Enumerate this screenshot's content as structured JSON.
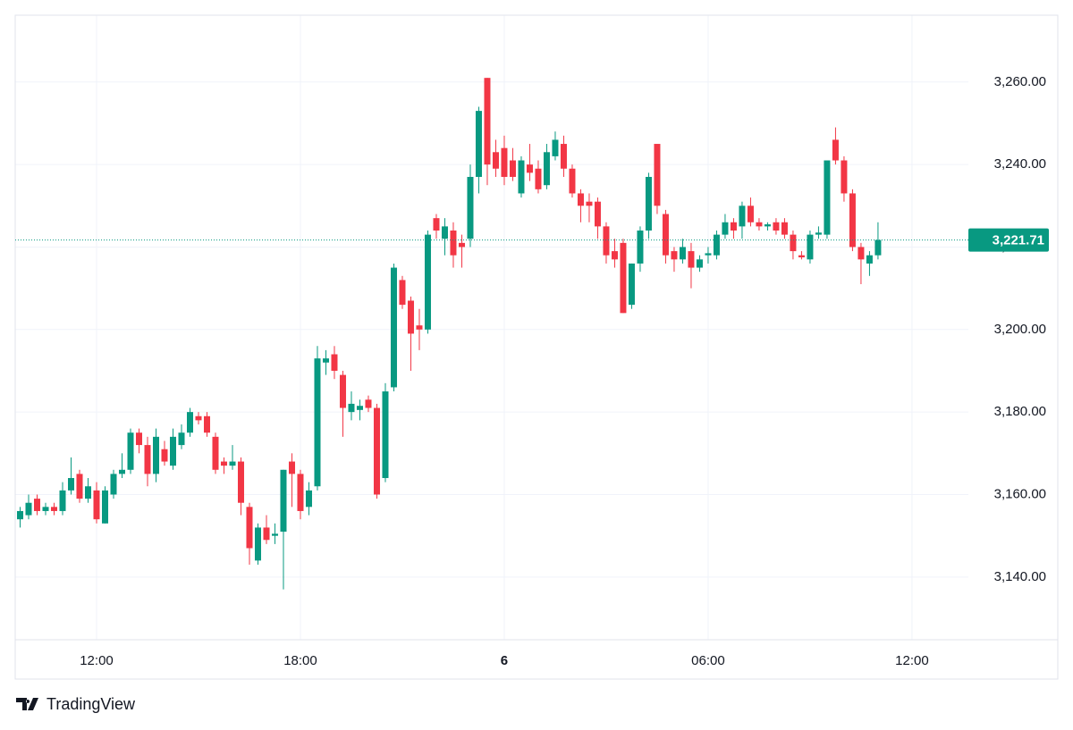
{
  "chart_data": {
    "type": "candlestick",
    "brand": "TradingView",
    "up_color": "#089981",
    "down_color": "#f23645",
    "x": [
      9.75,
      10,
      10.25,
      10.5,
      10.75,
      11,
      11.25,
      11.5,
      11.75,
      12,
      12.25,
      12.5,
      12.75,
      13,
      13.25,
      13.5,
      13.75,
      14,
      14.25,
      14.5,
      14.75,
      15,
      15.25,
      15.5,
      15.75,
      16,
      16.25,
      16.5,
      16.75,
      17,
      17.25,
      17.5,
      17.75,
      18,
      18.25,
      18.5,
      18.75,
      19,
      19.25,
      19.5,
      19.75,
      20,
      20.25,
      20.5,
      20.75,
      21,
      21.25,
      21.5,
      21.75,
      22,
      22.25,
      22.5,
      22.75,
      23,
      23.25,
      23.5,
      23.75,
      24,
      24.25,
      24.5,
      24.75,
      25,
      25.25,
      25.5,
      25.75,
      26,
      26.25,
      26.5,
      26.75,
      27,
      27.25,
      27.5,
      27.75,
      28,
      28.25,
      28.5,
      28.75,
      29,
      29.25,
      29.5,
      29.75,
      30,
      30.25,
      30.5,
      30.75,
      31,
      31.25,
      31.5,
      31.75,
      32,
      32.25,
      32.5,
      32.75,
      33,
      33.25,
      33.5,
      33.75,
      34,
      34.25,
      34.5,
      34.75,
      35
    ],
    "open": [
      3154,
      3155,
      3159,
      3156,
      3157,
      3156,
      3161,
      3165,
      3159,
      3161,
      3153,
      3160,
      3165,
      3166,
      3175,
      3172,
      3165,
      3171,
      3167,
      3172,
      3175,
      3179,
      3179,
      3174,
      3168,
      3167,
      3168,
      3157,
      3144,
      3152,
      3150,
      3151,
      3168,
      3165,
      3157,
      3162,
      3192,
      3194,
      3189,
      3180,
      3180.5,
      3183,
      3181,
      3164,
      3186,
      3212,
      3207,
      3201,
      3200,
      3227,
      3222,
      3224,
      3221,
      3222,
      3237,
      3261,
      3243,
      3244,
      3241,
      3233,
      3240,
      3239,
      3235,
      3242,
      3245,
      3239,
      3233,
      3231,
      3231,
      3225,
      3219,
      3221,
      3206,
      3216,
      3224,
      3245,
      3228,
      3219,
      3217,
      3219,
      3215,
      3218,
      3218,
      3223,
      3226,
      3225,
      3230,
      3226,
      3225,
      3226,
      3226,
      3223,
      3218,
      3217,
      3223,
      3223,
      3246,
      3241,
      3233,
      3220,
      3216,
      3218
    ],
    "high": [
      3157,
      3160,
      3160,
      3158,
      3158,
      3163,
      3169,
      3166,
      3164,
      3163,
      3162,
      3166,
      3170,
      3176,
      3176,
      3174,
      3176,
      3173,
      3176,
      3177,
      3181,
      3180,
      3180,
      3175,
      3169,
      3172,
      3169,
      3158,
      3153,
      3155,
      3153,
      3166,
      3170,
      3166,
      3163,
      3196,
      3195,
      3196,
      3190,
      3185,
      3183,
      3184,
      3182,
      3187,
      3216,
      3213,
      3208,
      3205,
      3224,
      3228,
      3227,
      3226,
      3223,
      3240,
      3254,
      3261,
      3246,
      3247,
      3244,
      3242,
      3245,
      3241,
      3245,
      3248,
      3247,
      3240,
      3234,
      3233,
      3232,
      3226,
      3222,
      3222,
      3216,
      3225,
      3238,
      3245,
      3229,
      3220,
      3222,
      3221,
      3218,
      3220,
      3224,
      3228,
      3227,
      3231,
      3232,
      3227,
      3226,
      3227,
      3227,
      3224,
      3219,
      3224,
      3225,
      3241,
      3249,
      3242,
      3234,
      3221,
      3219,
      3226
    ],
    "low": [
      3152,
      3154,
      3155,
      3155,
      3155,
      3155,
      3160,
      3158,
      3158,
      3153,
      3153,
      3159,
      3164,
      3165,
      3170,
      3162,
      3163,
      3167,
      3166,
      3171,
      3174,
      3177,
      3174,
      3165,
      3165,
      3166,
      3155,
      3143,
      3143,
      3148,
      3148,
      3137,
      3157,
      3154,
      3155,
      3161,
      3189,
      3188,
      3174,
      3178,
      3178,
      3180,
      3159,
      3163,
      3185,
      3205,
      3190,
      3195,
      3199,
      3222,
      3218,
      3215,
      3215,
      3220,
      3233,
      3235,
      3237,
      3235,
      3236,
      3232,
      3236,
      3233,
      3234,
      3241,
      3237,
      3232,
      3226,
      3226,
      3222,
      3216,
      3215,
      3204,
      3205,
      3214,
      3222,
      3228,
      3216,
      3214,
      3216,
      3210,
      3214,
      3216,
      3217,
      3222,
      3222,
      3222,
      3225,
      3224,
      3224,
      3223,
      3222,
      3217,
      3217,
      3216,
      3222,
      3222,
      3240,
      3231,
      3219,
      3211,
      3213,
      3217
    ],
    "close": [
      3156,
      3158,
      3156,
      3157,
      3156,
      3161,
      3164,
      3159,
      3162,
      3154,
      3161,
      3165,
      3166,
      3175,
      3172,
      3165,
      3174,
      3168,
      3174,
      3175,
      3180,
      3178,
      3175,
      3166,
      3167,
      3168,
      3158,
      3147,
      3152,
      3149,
      3150.5,
      3166,
      3165,
      3156,
      3161,
      3193,
      3193,
      3190,
      3181,
      3182,
      3181.5,
      3181,
      3160,
      3185,
      3215,
      3206,
      3199,
      3200,
      3223,
      3224,
      3225,
      3218,
      3220,
      3237,
      3253,
      3240,
      3239,
      3237,
      3237,
      3241,
      3238,
      3234,
      3243,
      3246,
      3239,
      3233,
      3230,
      3230,
      3225,
      3218,
      3217,
      3204,
      3216,
      3224,
      3237,
      3230,
      3218,
      3217,
      3220,
      3215,
      3217,
      3218.5,
      3223,
      3226,
      3224,
      3230,
      3226,
      3225,
      3225.5,
      3224,
      3223,
      3219,
      3217.5,
      3223,
      3223.5,
      3241,
      3241,
      3233,
      3220,
      3217,
      3218,
      3221.71
    ],
    "last_price": {
      "value": 3221.71,
      "label": "3,221.71"
    },
    "xlim": [
      9.605,
      37.66
    ],
    "xticks": [
      {
        "value": 12,
        "label": "12:00"
      },
      {
        "value": 18,
        "label": "18:00"
      },
      {
        "value": 24,
        "label": "6"
      },
      {
        "value": 30,
        "label": "06:00"
      },
      {
        "value": 36,
        "label": "12:00"
      }
    ],
    "ylim": [
      3124.8,
      3276.2
    ],
    "yticks": [
      {
        "value": 3140,
        "label": "3,140.00"
      },
      {
        "value": 3160,
        "label": "3,160.00"
      },
      {
        "value": 3180,
        "label": "3,180.00"
      },
      {
        "value": 3200,
        "label": "3,200.00"
      },
      {
        "value": 3220,
        "label": "3,220.00"
      },
      {
        "value": 3240,
        "label": "3,240.00"
      },
      {
        "value": 3260,
        "label": "3,260.00"
      }
    ],
    "grid": true
  }
}
